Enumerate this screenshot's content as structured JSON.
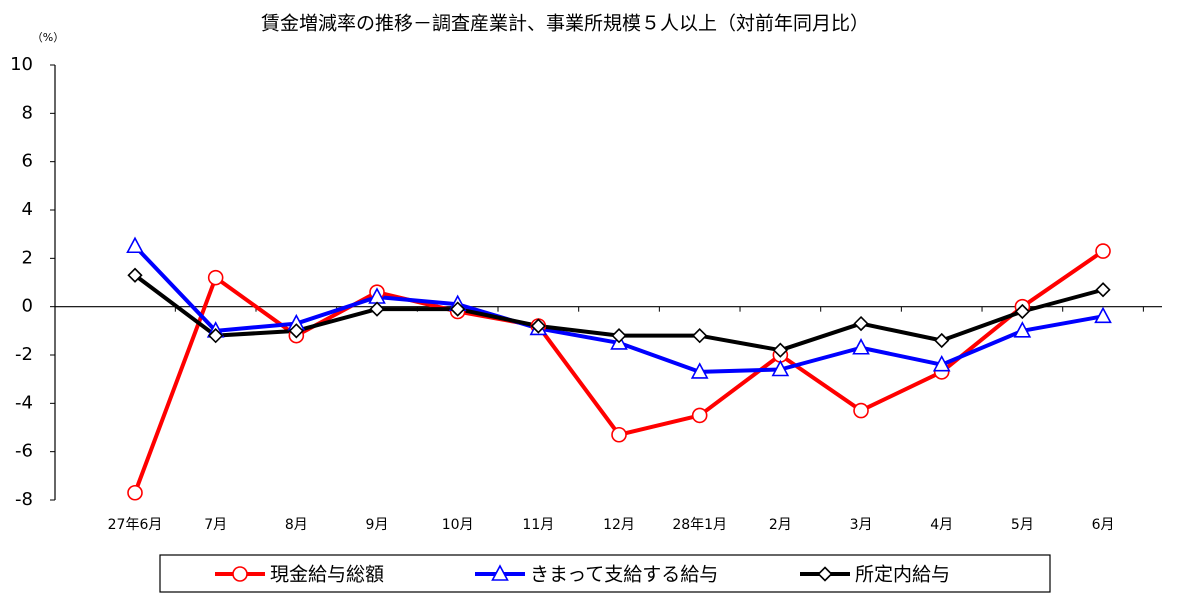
{
  "chart_data": {
    "type": "line",
    "title": "賃金増減率の推移－調査産業計、事業所規模５人以上（対前年同月比）",
    "y_unit": "（%）",
    "categories": [
      "27年6月",
      "7月",
      "8月",
      "9月",
      "10月",
      "11月",
      "12月",
      "28年1月",
      "2月",
      "3月",
      "4月",
      "5月",
      "6月"
    ],
    "series": [
      {
        "name": "現金給与総額",
        "color": "#ff0000",
        "marker": "circle",
        "values": [
          -7.7,
          1.2,
          -1.2,
          0.6,
          -0.2,
          -0.8,
          -5.3,
          -4.5,
          -2.0,
          -4.3,
          -2.7,
          0.0,
          2.3
        ]
      },
      {
        "name": "きまって支給する給与",
        "color": "#0000ff",
        "marker": "triangle",
        "values": [
          2.5,
          -1.0,
          -0.7,
          0.4,
          0.1,
          -0.9,
          -1.5,
          -2.7,
          -2.6,
          -1.7,
          -2.4,
          -1.0,
          -0.4
        ]
      },
      {
        "name": "所定内給与",
        "color": "#000000",
        "marker": "diamond",
        "values": [
          1.3,
          -1.2,
          -1.0,
          -0.1,
          -0.1,
          -0.8,
          -1.2,
          -1.2,
          -1.8,
          -0.7,
          -1.4,
          -0.2,
          0.7
        ]
      }
    ],
    "ylim": [
      -8,
      10
    ],
    "yticks": [
      -8,
      -6,
      -4,
      -2,
      0,
      2,
      4,
      6,
      8,
      10
    ],
    "grid": false,
    "legend": "bottom"
  }
}
